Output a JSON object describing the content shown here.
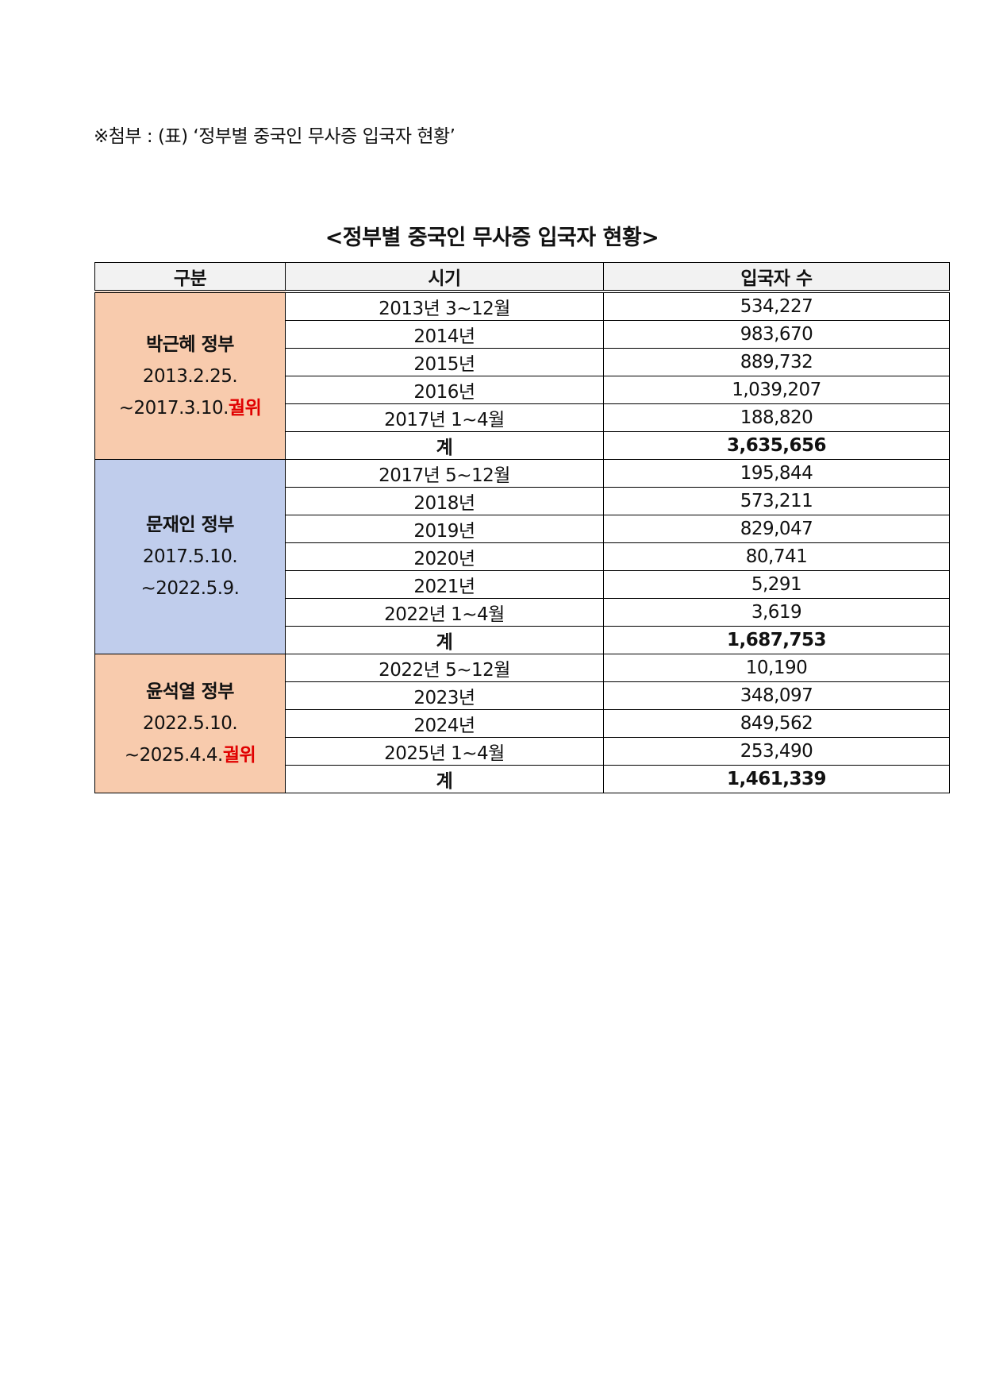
{
  "attachment_line": "※첨부 : (표) ‘정부별 중국인 무사증 입국자 현황’",
  "table_title": "<정부별 중국인 무사증 입국자 현황>",
  "headers": [
    "구분",
    "시기",
    "입국자 수"
  ],
  "colors": {
    "park": "#f8cbad",
    "moon": "#c0cdec",
    "yoon": "#f8cbad",
    "impeach": "#e00000"
  },
  "governments": [
    {
      "name": "박근혜 정부",
      "start": "2013.2.25.",
      "end": "~2017.3.10.",
      "note": "궐위",
      "rows": [
        [
          "2013년 3~12월",
          "534,227"
        ],
        [
          "2014년",
          "983,670"
        ],
        [
          "2015년",
          "889,732"
        ],
        [
          "2016년",
          "1,039,207"
        ],
        [
          "2017년 1~4월",
          "188,820"
        ]
      ],
      "total_label": "계",
      "total": "3,635,656"
    },
    {
      "name": "문재인 정부",
      "start": "2017.5.10.",
      "end": "~2022.5.9.",
      "note": "",
      "rows": [
        [
          "2017년 5~12월",
          "195,844"
        ],
        [
          "2018년",
          "573,211"
        ],
        [
          "2019년",
          "829,047"
        ],
        [
          "2020년",
          "80,741"
        ],
        [
          "2021년",
          "5,291"
        ],
        [
          "2022년 1~4월",
          "3,619"
        ]
      ],
      "total_label": "계",
      "total": "1,687,753"
    },
    {
      "name": "윤석열 정부",
      "start": "2022.5.10.",
      "end": "~2025.4.4.",
      "note": "궐위",
      "rows": [
        [
          "2022년 5~12월",
          "10,190"
        ],
        [
          "2023년",
          "348,097"
        ],
        [
          "2024년",
          "849,562"
        ],
        [
          "2025년 1~4월",
          "253,490"
        ]
      ],
      "total_label": "계",
      "total": "1,461,339"
    }
  ]
}
